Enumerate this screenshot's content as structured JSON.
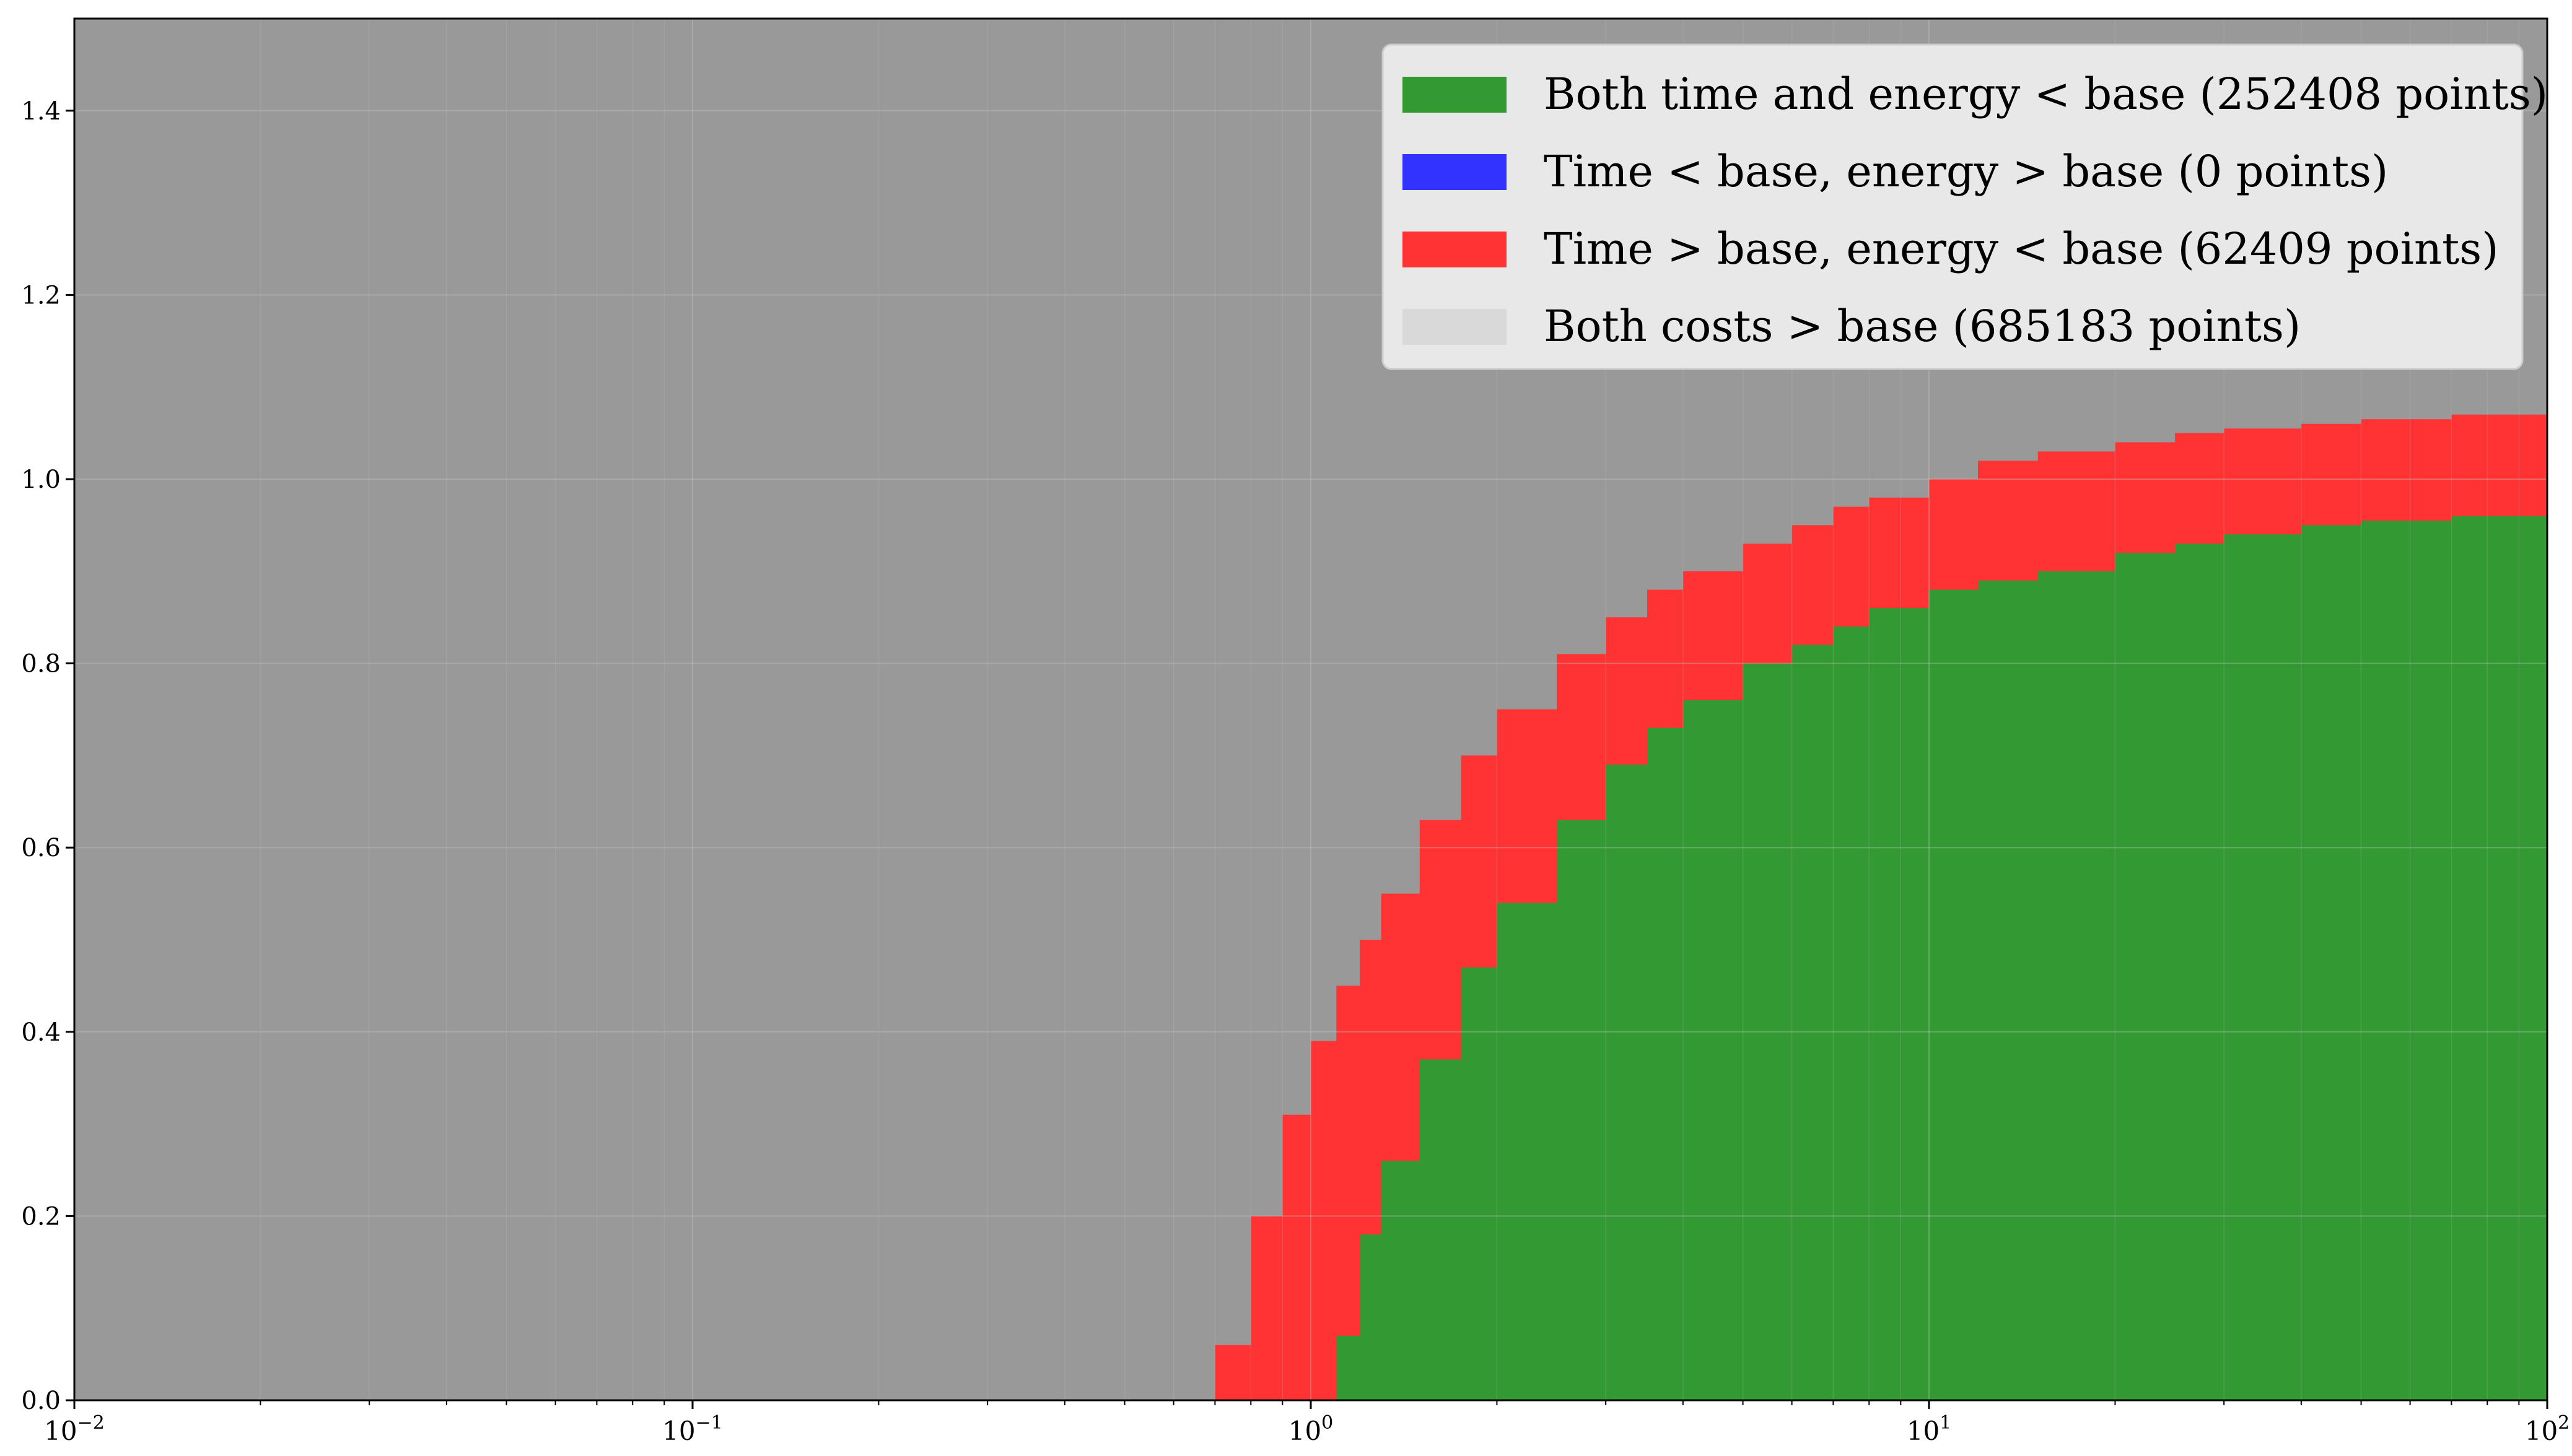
{
  "chart_data": {
    "type": "area",
    "title": "",
    "xlabel": "",
    "ylabel": "",
    "xscale": "log",
    "xlim": [
      0.01,
      100
    ],
    "ylim": [
      0,
      1.5
    ],
    "grid": true,
    "legend_position": "top-right",
    "x_tick_labels": [
      "10^-2",
      "10^-1",
      "10^0",
      "10^1",
      "10^2"
    ],
    "y_tick_labels": [
      "0.0",
      "0.2",
      "0.4",
      "0.6",
      "0.8",
      "1.0",
      "1.2",
      "1.4"
    ],
    "y_ticks": [
      0.0,
      0.2,
      0.4,
      0.6,
      0.8,
      1.0,
      1.2,
      1.4
    ],
    "x_ticks": [
      0.01,
      0.1,
      1,
      10,
      100
    ],
    "background_region": {
      "name": "Both costs > base (685183 points)",
      "color": "#999999",
      "legend_color": "#d9d9d9"
    },
    "series": [
      {
        "name": "Both time and energy < base (252408 points)",
        "color": "#339933",
        "x": [
          1.05,
          1.1,
          1.2,
          1.3,
          1.5,
          1.75,
          2.0,
          2.5,
          3.0,
          3.5,
          4.0,
          5.0,
          6.0,
          7.0,
          8.0,
          10.0,
          12.0,
          15.0,
          20.0,
          25.0,
          30.0,
          40.0,
          50.0,
          70.0,
          100.0
        ],
        "y": [
          0.0,
          0.07,
          0.18,
          0.26,
          0.37,
          0.47,
          0.54,
          0.63,
          0.69,
          0.73,
          0.76,
          0.8,
          0.82,
          0.84,
          0.86,
          0.88,
          0.89,
          0.9,
          0.92,
          0.93,
          0.94,
          0.95,
          0.955,
          0.96,
          0.965
        ]
      },
      {
        "name": "Time < base, energy > base (0 points)",
        "color": "#3333ff",
        "x": [],
        "y": []
      },
      {
        "name": "Time > base, energy < base (62409 points)",
        "color": "#ff3333",
        "x": [
          0.65,
          0.7,
          0.8,
          0.9,
          1.0,
          1.1,
          1.2,
          1.3,
          1.5,
          1.75,
          2.0,
          2.5,
          3.0,
          3.5,
          4.0,
          5.0,
          6.0,
          7.0,
          8.0,
          10.0,
          12.0,
          15.0,
          20.0,
          25.0,
          30.0,
          40.0,
          50.0,
          70.0,
          100.0
        ],
        "y": [
          0.0,
          0.06,
          0.2,
          0.31,
          0.39,
          0.45,
          0.5,
          0.55,
          0.63,
          0.7,
          0.75,
          0.81,
          0.85,
          0.88,
          0.9,
          0.93,
          0.95,
          0.97,
          0.98,
          1.0,
          1.02,
          1.03,
          1.04,
          1.05,
          1.055,
          1.06,
          1.065,
          1.07,
          1.07
        ]
      }
    ],
    "legend": [
      {
        "label": "Both time and energy < base (252408 points)",
        "color": "#339933"
      },
      {
        "label": "Time < base, energy > base (0 points)",
        "color": "#3333ff"
      },
      {
        "label": "Time > base, energy < base (62409 points)",
        "color": "#ff3333"
      },
      {
        "label": "Both costs > base (685183 points)",
        "color": "#d9d9d9"
      }
    ]
  }
}
